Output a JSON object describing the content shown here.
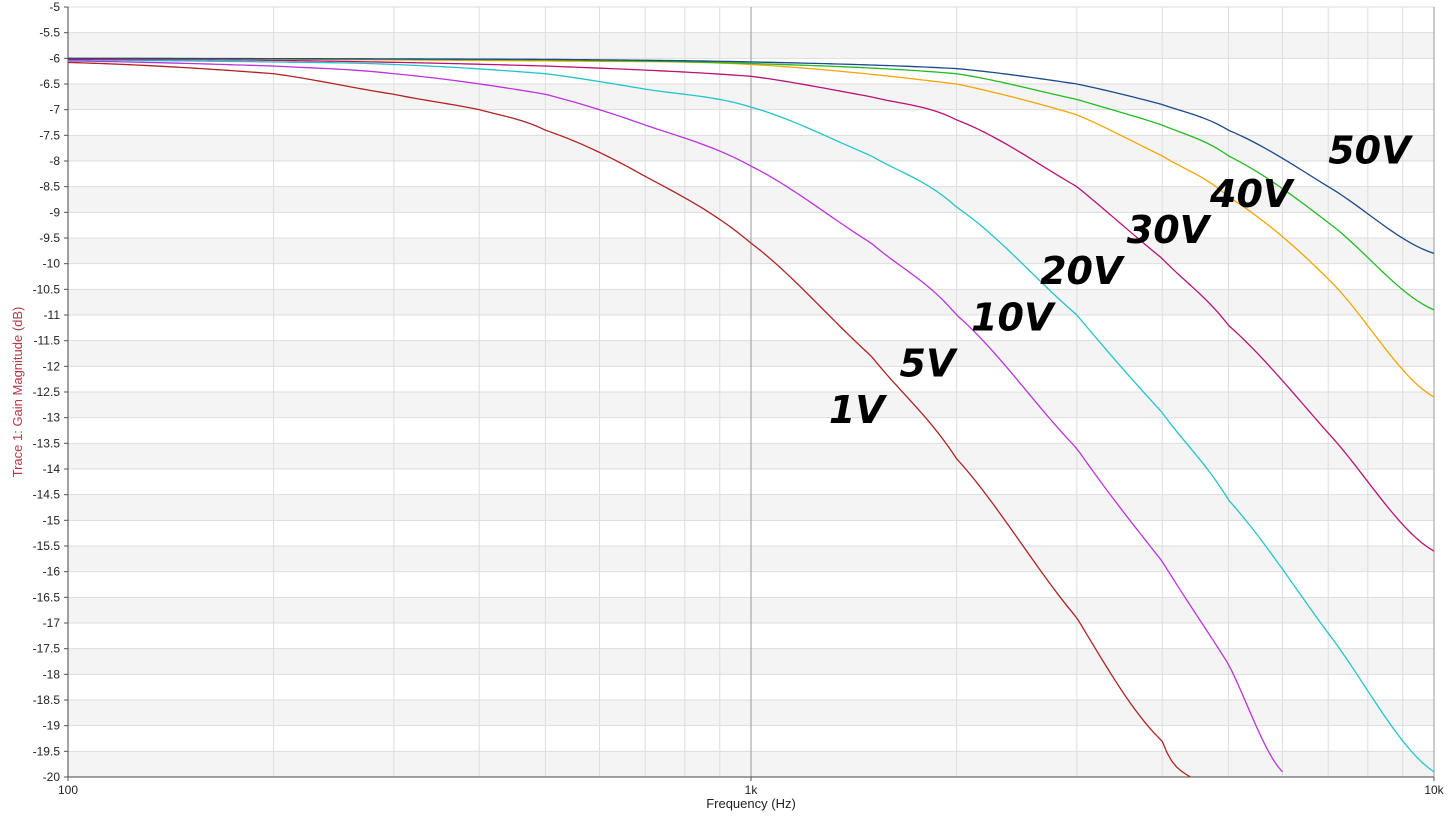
{
  "chart_data": {
    "type": "line",
    "xlabel": "Frequency (Hz)",
    "ylabel": "Trace 1: Gain Magnitude (dB)",
    "x_scale": "log",
    "xlim": [
      100,
      10000
    ],
    "ylim": [
      -20,
      -5
    ],
    "x_tick_labels": [
      {
        "value": 100,
        "label": "100"
      },
      {
        "value": 1000,
        "label": "1k"
      },
      {
        "value": 10000,
        "label": "10k"
      }
    ],
    "y_ticks": [
      -5,
      -5.5,
      -6,
      -6.5,
      -7,
      -7.5,
      -8,
      -8.5,
      -9,
      -9.5,
      -10,
      -10.5,
      -11,
      -11.5,
      -12,
      -12.5,
      -13,
      -13.5,
      -14,
      -14.5,
      -15,
      -15.5,
      -16,
      -16.5,
      -17,
      -17.5,
      -18,
      -18.5,
      -19,
      -19.5,
      -20
    ],
    "grid": true,
    "background_bands": true,
    "series": [
      {
        "name": "1V",
        "color": "#b22222",
        "label_at": [
          1300,
          -13.1
        ],
        "x": [
          100,
          200,
          300,
          400,
          500,
          700,
          1000,
          1500,
          2000,
          3000,
          4000,
          4400
        ],
        "y": [
          -6.08,
          -6.3,
          -6.7,
          -7.0,
          -7.4,
          -8.3,
          -9.6,
          -11.8,
          -13.8,
          -16.9,
          -19.3,
          -20.0
        ]
      },
      {
        "name": "5V",
        "color": "#bb33dd",
        "label_at": [
          1650,
          -12.2
        ],
        "x": [
          100,
          200,
          300,
          500,
          700,
          1000,
          1500,
          2000,
          3000,
          4000,
          5000,
          6000
        ],
        "y": [
          -6.05,
          -6.15,
          -6.3,
          -6.7,
          -7.3,
          -8.1,
          -9.6,
          -11.0,
          -13.6,
          -15.8,
          -17.8,
          -19.9
        ]
      },
      {
        "name": "10V",
        "color": "#22c4cc",
        "label_at": [
          2100,
          -11.3
        ],
        "x": [
          100,
          200,
          300,
          500,
          700,
          1000,
          1500,
          2000,
          3000,
          4000,
          5000,
          7000,
          10000
        ],
        "y": [
          -6.03,
          -6.07,
          -6.12,
          -6.3,
          -6.6,
          -6.95,
          -7.9,
          -8.9,
          -11.0,
          -12.9,
          -14.6,
          -17.2,
          -19.9
        ]
      },
      {
        "name": "20V",
        "color": "#bb1177",
        "label_at": [
          2650,
          -10.4
        ],
        "x": [
          100,
          200,
          500,
          1000,
          1500,
          2000,
          3000,
          4000,
          5000,
          7000,
          10000
        ],
        "y": [
          -6.02,
          -6.04,
          -6.15,
          -6.35,
          -6.75,
          -7.2,
          -8.5,
          -9.9,
          -11.2,
          -13.3,
          -15.6
        ]
      },
      {
        "name": "30V",
        "color": "#f5a500",
        "label_at": [
          3550,
          -9.6
        ],
        "x": [
          100,
          500,
          1000,
          2000,
          3000,
          4000,
          5000,
          7000,
          10000
        ],
        "y": [
          -6.0,
          -6.05,
          -6.12,
          -6.5,
          -7.1,
          -7.9,
          -8.7,
          -10.3,
          -12.6
        ]
      },
      {
        "name": "40V",
        "color": "#22bb22",
        "label_at": [
          4700,
          -8.9
        ],
        "x": [
          100,
          500,
          1000,
          2000,
          3000,
          4000,
          5000,
          7000,
          10000
        ],
        "y": [
          -6.0,
          -6.03,
          -6.1,
          -6.3,
          -6.8,
          -7.3,
          -7.9,
          -9.2,
          -10.9
        ]
      },
      {
        "name": "50V",
        "color": "#1a4a8a",
        "label_at": [
          7000,
          -8.05
        ],
        "x": [
          100,
          500,
          1000,
          2000,
          3000,
          4000,
          5000,
          7000,
          10000
        ],
        "y": [
          -6.0,
          -6.02,
          -6.07,
          -6.2,
          -6.5,
          -6.9,
          -7.4,
          -8.5,
          -9.8
        ]
      }
    ]
  }
}
